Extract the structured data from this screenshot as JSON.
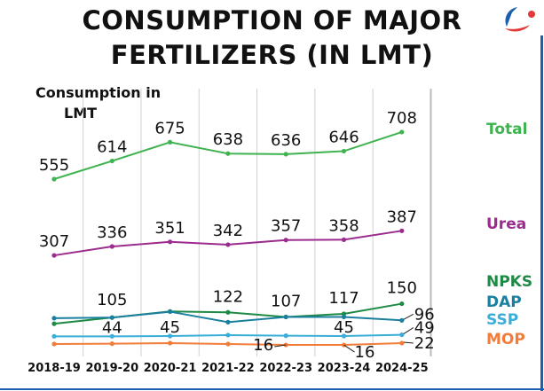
{
  "chart_data": {
    "type": "line",
    "title": "CONSUMPTION OF MAJOR FERTILIZERS (IN LMT)",
    "title_lines": [
      "CONSUMPTION OF MAJOR",
      "FERTILIZERS (IN LMT)"
    ],
    "ylabel_lines": [
      "Consumption in",
      "LMT"
    ],
    "categories": [
      "2018-19",
      "2019-20",
      "2020-21",
      "2021-22",
      "2022-23",
      "2023-24",
      "2024-25"
    ],
    "grid": "vertical",
    "legend_placement": "right",
    "series": [
      {
        "name": "Total",
        "color": "#3fb34f",
        "values": [
          555,
          614,
          675,
          638,
          636,
          646,
          708
        ],
        "labels": [
          "555",
          "614",
          "675",
          "638",
          "636",
          "646",
          "708"
        ]
      },
      {
        "name": "Urea",
        "color": "#9b2c8e",
        "values": [
          307,
          336,
          351,
          342,
          357,
          358,
          387
        ],
        "labels": [
          "307",
          "336",
          "351",
          "342",
          "357",
          "358",
          "387"
        ]
      },
      {
        "name": "NPKS",
        "color": "#1e8a45",
        "values": [
          85,
          105,
          125,
          122,
          107,
          117,
          150
        ],
        "labels": [
          null,
          "105",
          null,
          "122",
          "107",
          "117",
          "150"
        ]
      },
      {
        "name": "DAP",
        "color": "#1b7fa0",
        "values": [
          103,
          105,
          124,
          90,
          107,
          107,
          96
        ],
        "labels": [
          null,
          null,
          null,
          null,
          null,
          null,
          "96"
        ]
      },
      {
        "name": "SSP",
        "color": "#3aaed8",
        "values": [
          44,
          44,
          45,
          48,
          46,
          45,
          49
        ],
        "labels": [
          null,
          "44",
          "45",
          null,
          null,
          "45",
          "49"
        ]
      },
      {
        "name": "MOP",
        "color": "#f27d3a",
        "values": [
          19,
          20,
          22,
          19,
          16,
          16,
          22
        ],
        "labels": [
          null,
          null,
          null,
          null,
          "16",
          "16",
          "22"
        ]
      }
    ]
  }
}
